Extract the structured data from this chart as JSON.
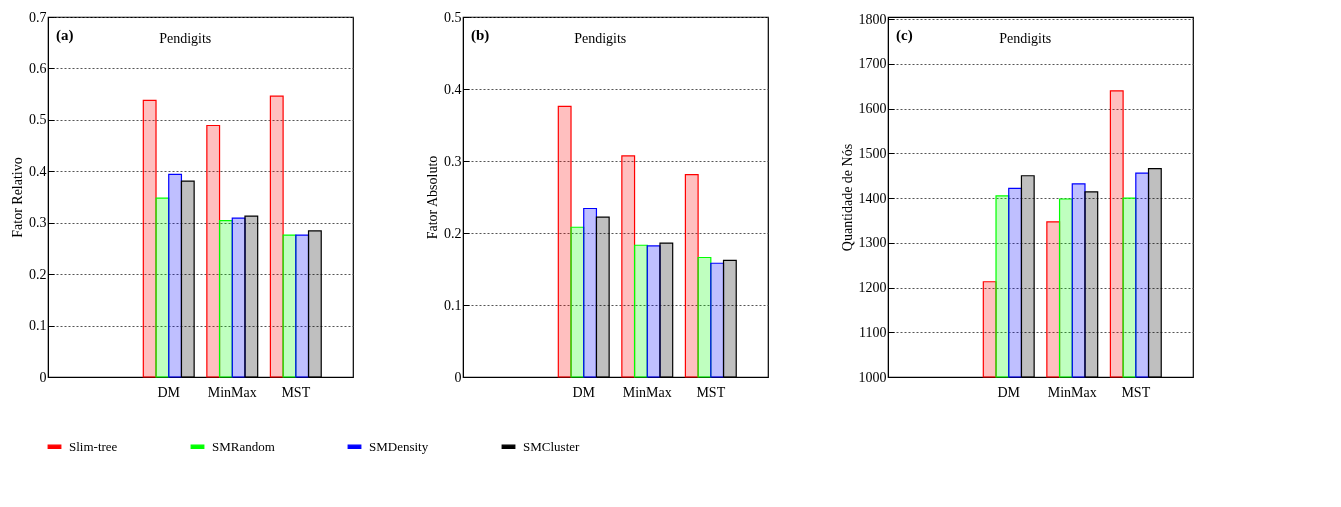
{
  "chart_data": [
    {
      "type": "bar",
      "categories": [
        null,
        "DM",
        "MinMax",
        "MST"
      ],
      "ylabel": "Fator Relativo",
      "ylim": [
        0,
        0.7
      ],
      "yticks": [
        0,
        0.1,
        0.2,
        0.3,
        0.4,
        0.5,
        0.6,
        0.7
      ],
      "grid": "y",
      "legend": "bottom",
      "annotations": [
        "(a)",
        "Pendigits"
      ],
      "series": [
        {
          "name": "Slim-tree",
          "color": "#ff0000",
          "values": [
            null,
            0.538,
            0.489,
            0.546
          ]
        },
        {
          "name": "SMRandom",
          "color": "#00ff00",
          "values": [
            null,
            0.348,
            0.304,
            0.276
          ]
        },
        {
          "name": "SMDensity",
          "color": "#0000ff",
          "values": [
            null,
            0.394,
            0.309,
            0.276
          ]
        },
        {
          "name": "SMCluster",
          "color": "#000000",
          "values": [
            null,
            0.381,
            0.313,
            0.284
          ]
        }
      ]
    },
    {
      "type": "bar",
      "categories": [
        null,
        "DM",
        "MinMax",
        "MST"
      ],
      "ylabel": "Fator Absoluto",
      "ylim": [
        0,
        0.5
      ],
      "yticks": [
        0,
        0.1,
        0.2,
        0.3,
        0.4,
        0.5
      ],
      "grid": "y",
      "legend": "bottom",
      "annotations": [
        "(b)",
        "Pendigits"
      ],
      "series": [
        {
          "name": "Slim-tree",
          "color": "#ff0000",
          "values": [
            null,
            0.376,
            0.307,
            0.281
          ]
        },
        {
          "name": "SMRandom",
          "color": "#00ff00",
          "values": [
            null,
            0.208,
            0.183,
            0.166
          ]
        },
        {
          "name": "SMDensity",
          "color": "#0000ff",
          "values": [
            null,
            0.234,
            0.182,
            0.158
          ]
        },
        {
          "name": "SMCluster",
          "color": "#000000",
          "values": [
            null,
            0.222,
            0.186,
            0.162
          ]
        }
      ]
    },
    {
      "type": "bar",
      "categories": [
        null,
        "DM",
        "MinMax",
        "MST"
      ],
      "ylabel": "Quantidade de Nós",
      "ylim": [
        1000,
        1805
      ],
      "yticks": [
        1000,
        1100,
        1200,
        1300,
        1400,
        1500,
        1600,
        1700,
        1800
      ],
      "grid": "y",
      "legend": "bottom",
      "annotations": [
        "(c)",
        "Pendigits"
      ],
      "series": [
        {
          "name": "Slim-tree",
          "color": "#ff0000",
          "values": [
            null,
            1213,
            1347,
            1640
          ]
        },
        {
          "name": "SMRandom",
          "color": "#00ff00",
          "values": [
            null,
            1405,
            1398,
            1400
          ]
        },
        {
          "name": "SMDensity",
          "color": "#0000ff",
          "values": [
            null,
            1422,
            1432,
            1456
          ]
        },
        {
          "name": "SMCluster",
          "color": "#000000",
          "values": [
            null,
            1450,
            1414,
            1466
          ]
        }
      ]
    }
  ]
}
